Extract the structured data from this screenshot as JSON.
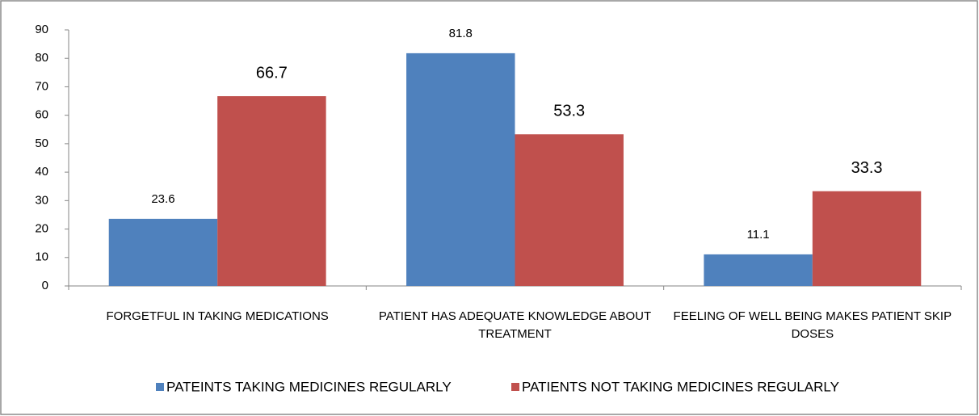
{
  "chart_data": {
    "type": "bar",
    "categories": [
      "FORGETFUL IN TAKING MEDICATIONS",
      "PATIENT HAS ADEQUATE KNOWLEDGE ABOUT TREATMENT",
      "FEELING OF WELL BEING MAKES PATIENT SKIP DOSES"
    ],
    "series": [
      {
        "name": "PATEINTS TAKING MEDICINES REGULARLY",
        "color": "#4f81bd",
        "values": [
          23.6,
          81.8,
          11.1
        ]
      },
      {
        "name": "PATIENTS NOT TAKING MEDICINES REGULARLY",
        "color": "#c0504d",
        "values": [
          66.7,
          53.3,
          33.3
        ]
      }
    ],
    "ylim": [
      0,
      90
    ],
    "yticks": [
      0,
      10,
      20,
      30,
      40,
      50,
      60,
      70,
      80,
      90
    ],
    "grid": false,
    "legend": "bottom"
  }
}
